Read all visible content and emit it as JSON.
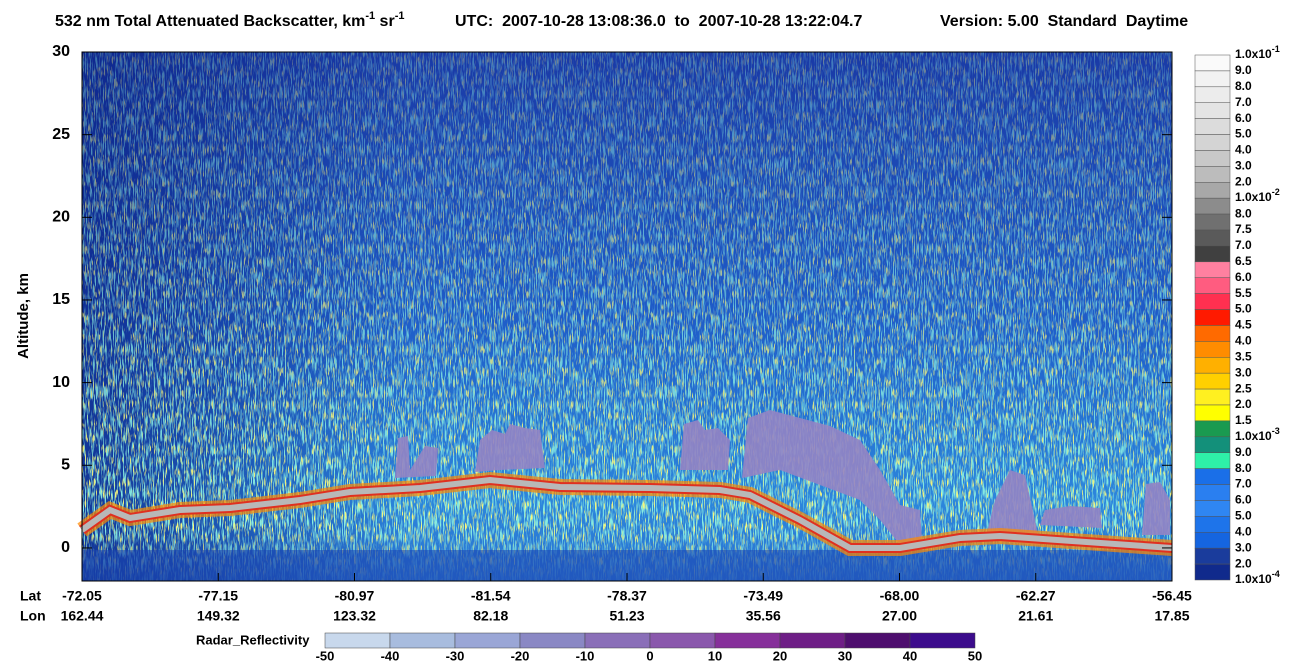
{
  "chart_data": {
    "type": "heatmap",
    "title": {
      "prefix": "532 nm Total Attenuated Backscatter, km",
      "exp1": "-1",
      "mid": " sr",
      "exp2": "-1",
      "utc": "UTC:  2007-10-28 13:08:36.0  to  2007-10-28 13:22:04.7",
      "version": "Version: 5.00  Standard  Daytime"
    },
    "y_label": "Altitude, km",
    "ylim": [
      -2,
      30
    ],
    "yticks": [
      0,
      5,
      10,
      15,
      20,
      25,
      30
    ],
    "x_row_labels": {
      "lat": "Lat",
      "lon": "Lon"
    },
    "x_ticks": [
      {
        "lat": "-72.05",
        "lon": "162.44"
      },
      {
        "lat": "-77.15",
        "lon": "149.32"
      },
      {
        "lat": "-80.97",
        "lon": "123.32"
      },
      {
        "lat": "-81.54",
        "lon": "82.18"
      },
      {
        "lat": "-78.37",
        "lon": "51.23"
      },
      {
        "lat": "-73.49",
        "lon": "35.56"
      },
      {
        "lat": "-68.00",
        "lon": "27.00"
      },
      {
        "lat": "-62.27",
        "lon": "21.61"
      },
      {
        "lat": "-56.45",
        "lon": "17.85"
      }
    ],
    "colorbar": {
      "labels": [
        {
          "text": "1.0x10",
          "exp": "-1"
        },
        "9.0",
        "8.0",
        "7.0",
        "6.0",
        "5.0",
        "4.0",
        "3.0",
        "2.0",
        {
          "text": "1.0x10",
          "exp": "-2"
        },
        "8.0",
        "7.5",
        "7.0",
        "6.5",
        "6.0",
        "5.5",
        "5.0",
        "4.5",
        "4.0",
        "3.5",
        "3.0",
        "2.5",
        "2.0",
        "1.5",
        {
          "text": "1.0x10",
          "exp": "-3"
        },
        "9.0",
        "8.0",
        "7.0",
        "6.0",
        "5.0",
        "4.0",
        "3.0",
        "2.0",
        {
          "text": "1.0x10",
          "exp": "-4"
        }
      ],
      "colors": [
        "#fafafa",
        "#f2f2f2",
        "#ececec",
        "#e4e4e4",
        "#dcdcdc",
        "#d4d4d4",
        "#c8c8c8",
        "#bcbcbc",
        "#a8a8a8",
        "#8c8c8c",
        "#707070",
        "#5a5a5a",
        "#404040",
        "#ff80a0",
        "#ff5c80",
        "#ff3050",
        "#ff1a00",
        "#ff6a00",
        "#ff8c00",
        "#ffb000",
        "#ffd000",
        "#fff020",
        "#ffff00",
        "#1a9a50",
        "#13907a",
        "#2ef0a8",
        "#1a6fe8",
        "#2a7ff0",
        "#2f86f2",
        "#1e74ea",
        "#1565e0",
        "#1a3c9c",
        "#102a8c"
      ]
    },
    "radar_colorbar": {
      "label": "Radar_Reflectivity",
      "ticks": [
        -50,
        -40,
        -30,
        -20,
        -10,
        0,
        10,
        20,
        30,
        40,
        50
      ],
      "colors": [
        "#c8d8ec",
        "#a8bcde",
        "#9aa6d6",
        "#8a88c4",
        "#8a6fb8",
        "#8a58ac",
        "#86309a",
        "#6e1e86",
        "#4e0e6e",
        "#3c0c8c"
      ]
    }
  }
}
